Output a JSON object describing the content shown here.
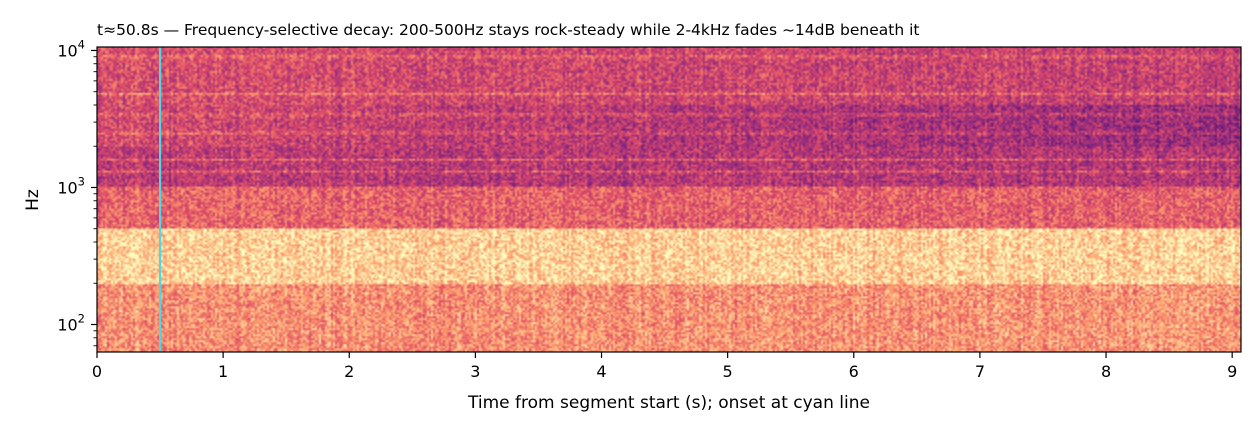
{
  "chart_data": {
    "type": "heatmap",
    "title": "t≈50.8s — Frequency-selective decay: 200-500Hz stays rock-steady while 2-4kHz fades ~14dB beneath it",
    "xlabel": "Time from segment start (s); onset at cyan line",
    "ylabel": "Hz",
    "x_scale": "linear",
    "y_scale": "log",
    "xlim": [
      0,
      9.07
    ],
    "ylim": [
      63,
      10600
    ],
    "x_ticks": [
      {
        "value": 0,
        "label": "0"
      },
      {
        "value": 1,
        "label": "1"
      },
      {
        "value": 2,
        "label": "2"
      },
      {
        "value": 3,
        "label": "3"
      },
      {
        "value": 4,
        "label": "4"
      },
      {
        "value": 5,
        "label": "5"
      },
      {
        "value": 6,
        "label": "6"
      },
      {
        "value": 7,
        "label": "7"
      },
      {
        "value": 8,
        "label": "8"
      },
      {
        "value": 9,
        "label": "9"
      }
    ],
    "y_ticks": [
      {
        "value": 100,
        "base": "10",
        "exp": "2"
      },
      {
        "value": 1000,
        "base": "10",
        "exp": "3"
      },
      {
        "value": 10000,
        "base": "10",
        "exp": "4"
      }
    ],
    "onset_marker": {
      "x": 0.5,
      "color": "#4fd8e0"
    },
    "colormap": "magma",
    "colormap_stops": [
      "#3b0f70",
      "#8c2981",
      "#de4968",
      "#fe9f6d",
      "#fcfdbf"
    ],
    "bands": [
      {
        "f_low": 63,
        "f_high": 200,
        "level_start": 0.7,
        "level_end": 0.72
      },
      {
        "f_low": 200,
        "f_high": 500,
        "level_start": 0.88,
        "level_end": 0.88
      },
      {
        "f_low": 500,
        "f_high": 1000,
        "level_start": 0.58,
        "level_end": 0.55
      },
      {
        "f_low": 1000,
        "f_high": 2000,
        "level_start": 0.4,
        "level_end": 0.36
      },
      {
        "f_low": 2000,
        "f_high": 4000,
        "level_start": 0.48,
        "level_end": 0.28
      },
      {
        "f_low": 4000,
        "f_high": 10600,
        "level_start": 0.5,
        "level_end": 0.42
      }
    ],
    "tonal_lines_hz": [
      1300,
      1600,
      2500,
      3400,
      4800,
      9000
    ]
  }
}
